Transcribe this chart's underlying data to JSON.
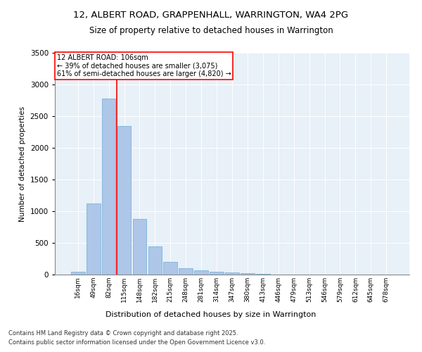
{
  "title": "12, ALBERT ROAD, GRAPPENHALL, WARRINGTON, WA4 2PG",
  "subtitle": "Size of property relative to detached houses in Warrington",
  "xlabel": "Distribution of detached houses by size in Warrington",
  "ylabel": "Number of detached properties",
  "bar_values": [
    50,
    1120,
    2780,
    2340,
    880,
    440,
    200,
    100,
    70,
    50,
    30,
    20,
    10,
    5,
    3,
    2,
    1,
    1,
    1,
    1,
    0
  ],
  "categories": [
    "16sqm",
    "49sqm",
    "82sqm",
    "115sqm",
    "148sqm",
    "182sqm",
    "215sqm",
    "248sqm",
    "281sqm",
    "314sqm",
    "347sqm",
    "380sqm",
    "413sqm",
    "446sqm",
    "479sqm",
    "513sqm",
    "546sqm",
    "579sqm",
    "612sqm",
    "645sqm",
    "678sqm"
  ],
  "bar_color": "#aec6e8",
  "bar_edge_color": "#6baed6",
  "vline_color": "red",
  "vline_x": 2.5,
  "annotation_title": "12 ALBERT ROAD: 106sqm",
  "annotation_line1": "← 39% of detached houses are smaller (3,075)",
  "annotation_line2": "61% of semi-detached houses are larger (4,820) →",
  "annotation_box_color": "white",
  "annotation_box_edge": "red",
  "ylim": [
    0,
    3500
  ],
  "yticks": [
    0,
    500,
    1000,
    1500,
    2000,
    2500,
    3000,
    3500
  ],
  "bg_color": "#e8f0f8",
  "footer1": "Contains HM Land Registry data © Crown copyright and database right 2025.",
  "footer2": "Contains public sector information licensed under the Open Government Licence v3.0.",
  "figsize": [
    6.0,
    5.0
  ],
  "dpi": 100
}
